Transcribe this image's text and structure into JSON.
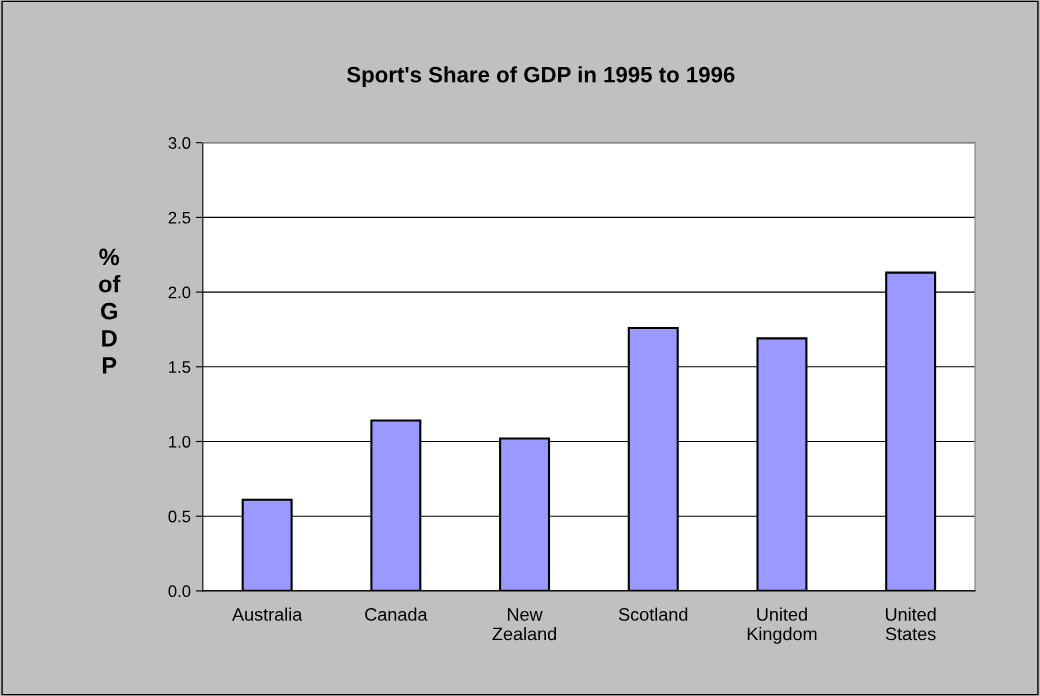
{
  "chart_data": {
    "type": "bar",
    "title": "Sport's Share of GDP in 1995 to 1996",
    "ylabel": "% of GDP",
    "categories": [
      "Australia",
      "Canada",
      "New\nZealand",
      "Scotland",
      "United\nKingdom",
      "United\nStates"
    ],
    "values": [
      0.61,
      1.14,
      1.02,
      1.76,
      1.69,
      2.13
    ],
    "color": "#9999ff",
    "ylim": [
      0,
      3
    ],
    "yticks": [
      {
        "value": 0,
        "label": "0.0"
      },
      {
        "value": 0.5,
        "label": "0.5"
      },
      {
        "value": 1,
        "label": "1.0"
      },
      {
        "value": 1.5,
        "label": "1.5"
      },
      {
        "value": 2,
        "label": "2.0"
      },
      {
        "value": 2.5,
        "label": "2.5"
      },
      {
        "value": 3,
        "label": "3.0"
      }
    ],
    "grid": "y"
  }
}
